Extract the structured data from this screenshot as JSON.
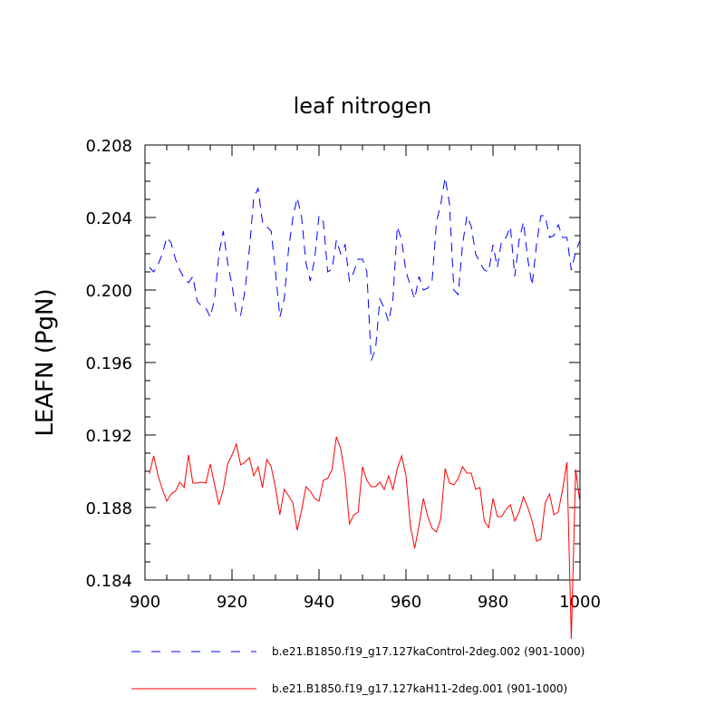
{
  "chart_data": {
    "type": "line",
    "title": "leaf nitrogen",
    "ylabel": "LEAFN  (PgN)",
    "x": [
      901,
      902,
      903,
      904,
      905,
      906,
      907,
      908,
      909,
      910,
      911,
      912,
      913,
      914,
      915,
      916,
      917,
      918,
      919,
      920,
      921,
      922,
      923,
      924,
      925,
      926,
      927,
      928,
      929,
      930,
      931,
      932,
      933,
      934,
      935,
      936,
      937,
      938,
      939,
      940,
      941,
      942,
      943,
      944,
      945,
      946,
      947,
      948,
      949,
      950,
      951,
      952,
      953,
      954,
      955,
      956,
      957,
      958,
      959,
      960,
      961,
      962,
      963,
      964,
      965,
      966,
      967,
      968,
      969,
      970,
      971,
      972,
      973,
      974,
      975,
      976,
      977,
      978,
      979,
      980,
      981,
      982,
      983,
      984,
      985,
      986,
      987,
      988,
      989,
      990,
      991,
      992,
      993,
      994,
      995,
      996,
      997,
      998,
      999,
      1000
    ],
    "xlim": [
      900,
      1000
    ],
    "xticks": [
      900,
      920,
      940,
      960,
      980,
      1000
    ],
    "ylim": [
      0.184,
      0.208
    ],
    "yticks": [
      0.184,
      0.188,
      0.192,
      0.196,
      {
        "value": 0.2,
        "label": "0.200"
      },
      0.204,
      0.208
    ],
    "series": [
      {
        "name": "b.e21.B1850.f19_g17.127kaControl-2deg.002 (901-1000)",
        "color": "#0000ff",
        "line_style": "dashed",
        "values": [
          0.20125,
          0.201,
          0.2014,
          0.202,
          0.2029,
          0.2026,
          0.2017,
          0.2011,
          0.20065,
          0.2004,
          0.20075,
          0.1994,
          0.1991,
          0.199,
          0.1985,
          0.1995,
          0.202,
          0.20325,
          0.2015,
          0.20025,
          0.19875,
          0.1986,
          0.2,
          0.20225,
          0.2051,
          0.2056,
          0.20375,
          0.2035,
          0.20325,
          0.201,
          0.1985,
          0.1995,
          0.20225,
          0.204,
          0.2051,
          0.204,
          0.2015,
          0.2005,
          0.2017,
          0.2041,
          0.20375,
          0.201,
          0.20115,
          0.20275,
          0.202,
          0.2025,
          0.2005,
          0.201,
          0.2017,
          0.2017,
          0.201,
          0.1961,
          0.19675,
          0.1995,
          0.199,
          0.19825,
          0.1995,
          0.2035,
          0.20275,
          0.201,
          0.20025,
          0.1995,
          0.20075,
          0.2,
          0.2001,
          0.2005,
          0.20375,
          0.20475,
          0.2062,
          0.20475,
          0.2,
          0.19975,
          0.2025,
          0.2041,
          0.2035,
          0.202,
          0.2015,
          0.2011,
          0.201,
          0.2025,
          0.20125,
          0.20275,
          0.2029,
          0.2035,
          0.20075,
          0.20275,
          0.20375,
          0.2017,
          0.20025,
          0.2025,
          0.2041,
          0.2041,
          0.2029,
          0.203,
          0.2036,
          0.2029,
          0.2029,
          0.2011,
          0.2021,
          0.20275
        ]
      },
      {
        "name": "b.e21.B1850.f19_g17.127kaH11-2deg.001 (901-1000)",
        "color": "#ff0000",
        "line_style": "solid",
        "values": [
          0.18985,
          0.19085,
          0.18975,
          0.189,
          0.18835,
          0.18875,
          0.1889,
          0.1894,
          0.1891,
          0.1909,
          0.18935,
          0.18935,
          0.1894,
          0.18935,
          0.1904,
          0.18925,
          0.18815,
          0.189,
          0.1904,
          0.1909,
          0.1915,
          0.19035,
          0.1905,
          0.19075,
          0.18975,
          0.19025,
          0.1891,
          0.19065,
          0.19025,
          0.1891,
          0.1876,
          0.189,
          0.18865,
          0.18825,
          0.18675,
          0.18785,
          0.18915,
          0.1889,
          0.1885,
          0.18835,
          0.1895,
          0.1896,
          0.1901,
          0.1919,
          0.19125,
          0.18975,
          0.1871,
          0.1876,
          0.18775,
          0.19025,
          0.1895,
          0.18915,
          0.18915,
          0.1894,
          0.189,
          0.18975,
          0.189,
          0.19015,
          0.19085,
          0.18975,
          0.187,
          0.18575,
          0.187,
          0.1885,
          0.1875,
          0.18685,
          0.18665,
          0.1874,
          0.19015,
          0.18935,
          0.18925,
          0.1896,
          0.19025,
          0.1899,
          0.1899,
          0.189,
          0.1891,
          0.18725,
          0.1869,
          0.1885,
          0.1875,
          0.1875,
          0.1879,
          0.18815,
          0.18725,
          0.18775,
          0.1886,
          0.188,
          0.18725,
          0.18615,
          0.18625,
          0.18825,
          0.18875,
          0.1876,
          0.18775,
          0.189,
          0.1905,
          0.18075,
          0.1901,
          0.18825
        ]
      }
    ]
  }
}
